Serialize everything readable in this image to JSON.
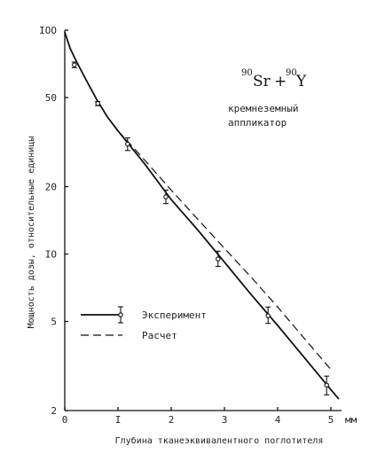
{
  "chart_data": {
    "type": "line",
    "scale_y": "log",
    "xlabel": "Глубина тканеэквивалентного поглотителя",
    "x_unit": "мм",
    "ylabel": "Мощность дозы, относительные единицы",
    "xlim": [
      0,
      5.2
    ],
    "ylim": [
      2,
      100
    ],
    "x_ticks": [
      {
        "value": 0,
        "label": "0"
      },
      {
        "value": 1,
        "label": "I"
      },
      {
        "value": 2,
        "label": "2"
      },
      {
        "value": 3,
        "label": "3"
      },
      {
        "value": 4,
        "label": "4"
      },
      {
        "value": 5,
        "label": "5"
      }
    ],
    "y_ticks": [
      {
        "value": 100,
        "label": "IOO"
      },
      {
        "value": 50,
        "label": "50"
      },
      {
        "value": 20,
        "label": "20"
      },
      {
        "value": 10,
        "label": "IO"
      },
      {
        "value": 5,
        "label": "5"
      },
      {
        "value": 2,
        "label": "2"
      }
    ],
    "isotope": {
      "a_mass": "90",
      "a_sym": "Sr",
      "b_mass": "90",
      "b_sym": "Y",
      "plus": "+"
    },
    "annotation": [
      "кремнеземный",
      "аппликатор"
    ],
    "legend": {
      "position": "center-left",
      "items": [
        {
          "label": "Эксперимент",
          "style": "solid-with-errorbar"
        },
        {
          "label": "Расчет",
          "style": "dashed"
        }
      ]
    },
    "series": [
      {
        "name": "Эксперимент",
        "style": "solid",
        "points": [
          {
            "x": 0,
            "y": 98
          },
          {
            "x": 0.1,
            "y": 83
          },
          {
            "x": 0.2,
            "y": 74
          },
          {
            "x": 0.4,
            "y": 60
          },
          {
            "x": 0.6,
            "y": 49
          },
          {
            "x": 0.8,
            "y": 41
          },
          {
            "x": 1.0,
            "y": 35.5
          },
          {
            "x": 1.2,
            "y": 31
          },
          {
            "x": 1.5,
            "y": 25.3
          },
          {
            "x": 2.0,
            "y": 17.5
          },
          {
            "x": 2.5,
            "y": 12.8
          },
          {
            "x": 3.0,
            "y": 9.2
          },
          {
            "x": 3.5,
            "y": 6.6
          },
          {
            "x": 4.0,
            "y": 4.8
          },
          {
            "x": 4.5,
            "y": 3.45
          },
          {
            "x": 5.0,
            "y": 2.48
          },
          {
            "x": 5.15,
            "y": 2.25
          }
        ]
      },
      {
        "name": "Расчет",
        "style": "dashed",
        "points": [
          {
            "x": 1.0,
            "y": 35.5
          },
          {
            "x": 1.3,
            "y": 29.7
          },
          {
            "x": 1.5,
            "y": 26.3
          },
          {
            "x": 2.0,
            "y": 19.3
          },
          {
            "x": 2.5,
            "y": 14.3
          },
          {
            "x": 3.0,
            "y": 10.6
          },
          {
            "x": 3.5,
            "y": 7.9
          },
          {
            "x": 4.0,
            "y": 5.8
          },
          {
            "x": 4.5,
            "y": 4.2
          },
          {
            "x": 5.0,
            "y": 3.05
          }
        ]
      }
    ],
    "measurements": [
      {
        "x": 0.18,
        "y": 70,
        "err_lo": 68,
        "err_hi": 72
      },
      {
        "x": 0.62,
        "y": 47,
        "err_lo": 46,
        "err_hi": 48
      },
      {
        "x": 1.18,
        "y": 31,
        "err_lo": 29,
        "err_hi": 33
      },
      {
        "x": 1.9,
        "y": 18,
        "err_lo": 16.8,
        "err_hi": 19.3
      },
      {
        "x": 2.88,
        "y": 9.5,
        "err_lo": 8.8,
        "err_hi": 10.3
      },
      {
        "x": 3.82,
        "y": 5.3,
        "err_lo": 4.9,
        "err_hi": 5.8
      },
      {
        "x": 4.92,
        "y": 2.6,
        "err_lo": 2.35,
        "err_hi": 2.85
      }
    ]
  }
}
